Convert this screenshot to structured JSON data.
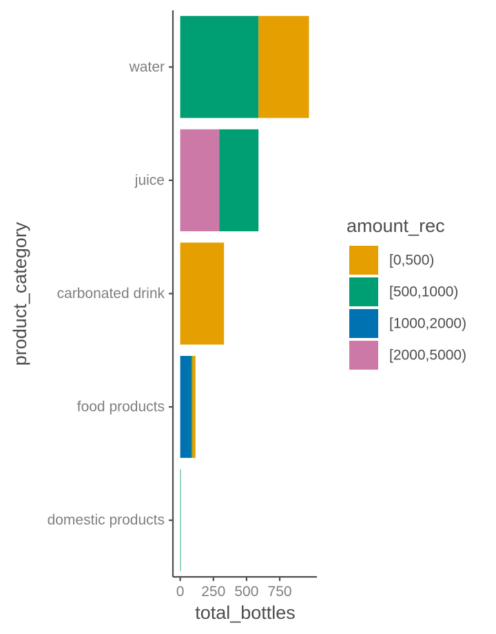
{
  "chart_data": {
    "type": "bar",
    "orientation": "horizontal",
    "stacked": true,
    "categories": [
      "water",
      "juice",
      "carbonated drink",
      "food products",
      "domestic products"
    ],
    "series": [
      {
        "name": "[0,500)",
        "color": "#E69F00",
        "values": [
          380,
          0,
          330,
          25,
          0
        ]
      },
      {
        "name": "[500,1000)",
        "color": "#009E73",
        "values": [
          590,
          295,
          0,
          10,
          3
        ]
      },
      {
        "name": "[1000,2000)",
        "color": "#0072B2",
        "values": [
          0,
          0,
          0,
          80,
          0
        ]
      },
      {
        "name": "[2000,5000)",
        "color": "#CC79A7",
        "values": [
          0,
          295,
          0,
          0,
          0
        ]
      }
    ],
    "stack_order": [
      "[2000,5000)",
      "[1000,2000)",
      "[500,1000)",
      "[0,500)"
    ],
    "xlabel": "total_bottles",
    "ylabel": "product_category",
    "xticks": [
      0,
      250,
      500,
      750
    ],
    "xtick_labels": [
      "0",
      "250",
      "500",
      "750"
    ],
    "xlim": [
      -55,
      1030
    ],
    "grid": false,
    "legend": {
      "title": "amount_rec",
      "position": "right"
    }
  }
}
